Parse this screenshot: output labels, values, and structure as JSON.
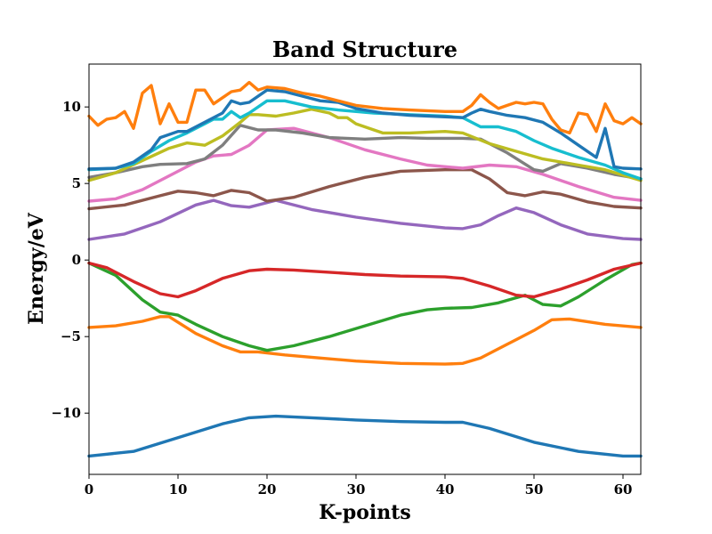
{
  "chart_data": {
    "type": "line",
    "title": "Band Structure",
    "xlabel": "K-points",
    "ylabel": "Energy/eV",
    "xlim": [
      0,
      62
    ],
    "ylim": [
      -14,
      12.8
    ],
    "x_ticks": [
      0,
      10,
      20,
      30,
      40,
      50,
      60
    ],
    "y_ticks": [
      -10,
      -5,
      0,
      5,
      10
    ],
    "y_tick_labels": [
      "−10",
      "−5",
      "0",
      "5",
      "10"
    ],
    "grid": false,
    "legend": "none",
    "series": [
      {
        "color": "#1f77b4",
        "points": [
          [
            0,
            -12.8
          ],
          [
            5,
            -12.5
          ],
          [
            10,
            -11.6
          ],
          [
            15,
            -10.7
          ],
          [
            18,
            -10.3
          ],
          [
            21,
            -10.2
          ],
          [
            25,
            -10.3
          ],
          [
            30,
            -10.45
          ],
          [
            35,
            -10.55
          ],
          [
            40,
            -10.6
          ],
          [
            42,
            -10.6
          ],
          [
            45,
            -11.0
          ],
          [
            50,
            -11.9
          ],
          [
            55,
            -12.5
          ],
          [
            60,
            -12.8
          ],
          [
            62,
            -12.8
          ]
        ]
      },
      {
        "color": "#ff7f0e",
        "points": [
          [
            0,
            -4.4
          ],
          [
            3,
            -4.3
          ],
          [
            6,
            -4.0
          ],
          [
            8,
            -3.7
          ],
          [
            9,
            -3.7
          ],
          [
            12,
            -4.8
          ],
          [
            15,
            -5.6
          ],
          [
            17,
            -6.0
          ],
          [
            19,
            -6.0
          ],
          [
            22,
            -6.2
          ],
          [
            26,
            -6.4
          ],
          [
            30,
            -6.6
          ],
          [
            35,
            -6.75
          ],
          [
            40,
            -6.8
          ],
          [
            42,
            -6.75
          ],
          [
            44,
            -6.4
          ],
          [
            47,
            -5.5
          ],
          [
            50,
            -4.6
          ],
          [
            52,
            -3.9
          ],
          [
            54,
            -3.85
          ],
          [
            58,
            -4.2
          ],
          [
            62,
            -4.4
          ]
        ]
      },
      {
        "color": "#2ca02c",
        "points": [
          [
            0,
            -0.2
          ],
          [
            3,
            -1.0
          ],
          [
            6,
            -2.6
          ],
          [
            8,
            -3.4
          ],
          [
            10,
            -3.6
          ],
          [
            12,
            -4.2
          ],
          [
            15,
            -5.0
          ],
          [
            18,
            -5.6
          ],
          [
            20,
            -5.9
          ],
          [
            23,
            -5.6
          ],
          [
            27,
            -5.0
          ],
          [
            31,
            -4.3
          ],
          [
            35,
            -3.6
          ],
          [
            38,
            -3.25
          ],
          [
            40,
            -3.15
          ],
          [
            43,
            -3.1
          ],
          [
            46,
            -2.8
          ],
          [
            49,
            -2.3
          ],
          [
            51,
            -2.9
          ],
          [
            53,
            -3.0
          ],
          [
            55,
            -2.4
          ],
          [
            58,
            -1.3
          ],
          [
            61,
            -0.3
          ],
          [
            62,
            -0.2
          ]
        ]
      },
      {
        "color": "#d62728",
        "points": [
          [
            0,
            -0.2
          ],
          [
            2,
            -0.5
          ],
          [
            5,
            -1.4
          ],
          [
            8,
            -2.2
          ],
          [
            10,
            -2.4
          ],
          [
            12,
            -2.0
          ],
          [
            15,
            -1.2
          ],
          [
            18,
            -0.7
          ],
          [
            20,
            -0.6
          ],
          [
            23,
            -0.65
          ],
          [
            27,
            -0.8
          ],
          [
            31,
            -0.95
          ],
          [
            35,
            -1.05
          ],
          [
            40,
            -1.1
          ],
          [
            42,
            -1.2
          ],
          [
            45,
            -1.7
          ],
          [
            48,
            -2.3
          ],
          [
            50,
            -2.4
          ],
          [
            53,
            -1.9
          ],
          [
            56,
            -1.3
          ],
          [
            59,
            -0.6
          ],
          [
            62,
            -0.2
          ]
        ]
      },
      {
        "color": "#9467bd",
        "points": [
          [
            0,
            1.35
          ],
          [
            4,
            1.7
          ],
          [
            8,
            2.5
          ],
          [
            12,
            3.6
          ],
          [
            14,
            3.9
          ],
          [
            16,
            3.55
          ],
          [
            18,
            3.45
          ],
          [
            21,
            3.9
          ],
          [
            25,
            3.3
          ],
          [
            30,
            2.8
          ],
          [
            35,
            2.4
          ],
          [
            40,
            2.1
          ],
          [
            42,
            2.05
          ],
          [
            44,
            2.3
          ],
          [
            46,
            2.9
          ],
          [
            48,
            3.4
          ],
          [
            50,
            3.1
          ],
          [
            53,
            2.3
          ],
          [
            56,
            1.7
          ],
          [
            60,
            1.4
          ],
          [
            62,
            1.35
          ]
        ]
      },
      {
        "color": "#8c564b",
        "points": [
          [
            0,
            3.35
          ],
          [
            4,
            3.6
          ],
          [
            8,
            4.2
          ],
          [
            10,
            4.5
          ],
          [
            12,
            4.4
          ],
          [
            14,
            4.2
          ],
          [
            16,
            4.55
          ],
          [
            18,
            4.4
          ],
          [
            20,
            3.85
          ],
          [
            23,
            4.1
          ],
          [
            27,
            4.8
          ],
          [
            31,
            5.4
          ],
          [
            35,
            5.8
          ],
          [
            40,
            5.9
          ],
          [
            43,
            5.9
          ],
          [
            45,
            5.3
          ],
          [
            47,
            4.4
          ],
          [
            49,
            4.2
          ],
          [
            51,
            4.45
          ],
          [
            53,
            4.3
          ],
          [
            56,
            3.8
          ],
          [
            59,
            3.5
          ],
          [
            62,
            3.4
          ]
        ]
      },
      {
        "color": "#e377c2",
        "points": [
          [
            0,
            3.85
          ],
          [
            3,
            4.0
          ],
          [
            6,
            4.6
          ],
          [
            9,
            5.5
          ],
          [
            12,
            6.4
          ],
          [
            14,
            6.8
          ],
          [
            16,
            6.9
          ],
          [
            18,
            7.5
          ],
          [
            20,
            8.5
          ],
          [
            23,
            8.6
          ],
          [
            27,
            8.0
          ],
          [
            31,
            7.2
          ],
          [
            35,
            6.6
          ],
          [
            38,
            6.2
          ],
          [
            42,
            6.0
          ],
          [
            45,
            6.2
          ],
          [
            48,
            6.1
          ],
          [
            51,
            5.6
          ],
          [
            55,
            4.8
          ],
          [
            59,
            4.1
          ],
          [
            62,
            3.9
          ]
        ]
      },
      {
        "color": "#7f7f7f",
        "points": [
          [
            0,
            5.4
          ],
          [
            3,
            5.7
          ],
          [
            6,
            6.1
          ],
          [
            8,
            6.25
          ],
          [
            11,
            6.3
          ],
          [
            13,
            6.6
          ],
          [
            15,
            7.5
          ],
          [
            17,
            8.8
          ],
          [
            19,
            8.5
          ],
          [
            21,
            8.5
          ],
          [
            24,
            8.3
          ],
          [
            27,
            8.0
          ],
          [
            31,
            7.9
          ],
          [
            35,
            8.0
          ],
          [
            38,
            7.95
          ],
          [
            42,
            7.95
          ],
          [
            44,
            7.9
          ],
          [
            47,
            7.0
          ],
          [
            50,
            5.9
          ],
          [
            51,
            5.8
          ],
          [
            53,
            6.3
          ],
          [
            56,
            6.0
          ],
          [
            59,
            5.6
          ],
          [
            62,
            5.3
          ]
        ]
      },
      {
        "color": "#bcbd22",
        "points": [
          [
            0,
            5.2
          ],
          [
            3,
            5.7
          ],
          [
            6,
            6.5
          ],
          [
            9,
            7.3
          ],
          [
            11,
            7.65
          ],
          [
            13,
            7.5
          ],
          [
            15,
            8.1
          ],
          [
            17,
            9.0
          ],
          [
            18,
            9.5
          ],
          [
            19,
            9.5
          ],
          [
            21,
            9.4
          ],
          [
            23,
            9.6
          ],
          [
            25,
            9.85
          ],
          [
            27,
            9.6
          ],
          [
            28,
            9.3
          ],
          [
            29,
            9.3
          ],
          [
            30,
            8.9
          ],
          [
            33,
            8.3
          ],
          [
            36,
            8.3
          ],
          [
            40,
            8.4
          ],
          [
            42,
            8.3
          ],
          [
            45,
            7.6
          ],
          [
            48,
            7.1
          ],
          [
            51,
            6.6
          ],
          [
            55,
            6.2
          ],
          [
            58,
            5.9
          ],
          [
            62,
            5.2
          ]
        ]
      },
      {
        "color": "#17becf",
        "points": [
          [
            0,
            5.9
          ],
          [
            3,
            6.0
          ],
          [
            5,
            6.3
          ],
          [
            7,
            7.1
          ],
          [
            9,
            7.8
          ],
          [
            11,
            8.3
          ],
          [
            13,
            8.9
          ],
          [
            14,
            9.2
          ],
          [
            15,
            9.2
          ],
          [
            16,
            9.7
          ],
          [
            17,
            9.3
          ],
          [
            18,
            9.6
          ],
          [
            20,
            10.4
          ],
          [
            22,
            10.4
          ],
          [
            25,
            10.0
          ],
          [
            28,
            9.8
          ],
          [
            32,
            9.6
          ],
          [
            36,
            9.5
          ],
          [
            40,
            9.4
          ],
          [
            42,
            9.3
          ],
          [
            44,
            8.7
          ],
          [
            46,
            8.7
          ],
          [
            48,
            8.4
          ],
          [
            50,
            7.8
          ],
          [
            52,
            7.3
          ],
          [
            55,
            6.7
          ],
          [
            58,
            6.2
          ],
          [
            60,
            5.7
          ],
          [
            62,
            5.3
          ]
        ]
      },
      {
        "color": "#1f77b4",
        "points": [
          [
            0,
            5.95
          ],
          [
            3,
            6.0
          ],
          [
            5,
            6.4
          ],
          [
            7,
            7.2
          ],
          [
            8,
            8.0
          ],
          [
            10,
            8.4
          ],
          [
            11,
            8.4
          ],
          [
            13,
            9.0
          ],
          [
            15,
            9.6
          ],
          [
            16,
            10.4
          ],
          [
            17,
            10.2
          ],
          [
            18,
            10.3
          ],
          [
            20,
            11.1
          ],
          [
            22,
            11.0
          ],
          [
            24,
            10.7
          ],
          [
            26,
            10.4
          ],
          [
            28,
            10.3
          ],
          [
            30,
            9.9
          ],
          [
            33,
            9.6
          ],
          [
            36,
            9.45
          ],
          [
            40,
            9.35
          ],
          [
            42,
            9.3
          ],
          [
            43,
            9.6
          ],
          [
            44,
            9.85
          ],
          [
            45,
            9.7
          ],
          [
            47,
            9.45
          ],
          [
            49,
            9.3
          ],
          [
            51,
            9.0
          ],
          [
            53,
            8.3
          ],
          [
            55,
            7.5
          ],
          [
            57,
            6.7
          ],
          [
            58,
            8.6
          ],
          [
            59,
            6.1
          ],
          [
            60,
            6.0
          ],
          [
            62,
            5.95
          ]
        ]
      },
      {
        "color": "#ff7f0e",
        "points": [
          [
            0,
            9.4
          ],
          [
            1,
            8.8
          ],
          [
            2,
            9.2
          ],
          [
            3,
            9.3
          ],
          [
            4,
            9.7
          ],
          [
            5,
            8.6
          ],
          [
            6,
            10.9
          ],
          [
            7,
            11.4
          ],
          [
            8,
            8.9
          ],
          [
            9,
            10.2
          ],
          [
            10,
            9.0
          ],
          [
            11,
            9.0
          ],
          [
            12,
            11.1
          ],
          [
            13,
            11.1
          ],
          [
            14,
            10.2
          ],
          [
            15,
            10.6
          ],
          [
            16,
            11.0
          ],
          [
            17,
            11.1
          ],
          [
            18,
            11.6
          ],
          [
            19,
            11.1
          ],
          [
            20,
            11.3
          ],
          [
            22,
            11.2
          ],
          [
            24,
            10.9
          ],
          [
            26,
            10.7
          ],
          [
            28,
            10.4
          ],
          [
            30,
            10.1
          ],
          [
            33,
            9.9
          ],
          [
            36,
            9.8
          ],
          [
            40,
            9.7
          ],
          [
            42,
            9.7
          ],
          [
            43,
            10.1
          ],
          [
            44,
            10.8
          ],
          [
            45,
            10.3
          ],
          [
            46,
            9.9
          ],
          [
            47,
            10.1
          ],
          [
            48,
            10.3
          ],
          [
            49,
            10.2
          ],
          [
            50,
            10.3
          ],
          [
            51,
            10.2
          ],
          [
            52,
            9.2
          ],
          [
            53,
            8.5
          ],
          [
            54,
            8.3
          ],
          [
            55,
            9.6
          ],
          [
            56,
            9.5
          ],
          [
            57,
            8.4
          ],
          [
            58,
            10.2
          ],
          [
            59,
            9.1
          ],
          [
            60,
            8.9
          ],
          [
            61,
            9.3
          ],
          [
            62,
            8.9
          ]
        ]
      }
    ]
  }
}
